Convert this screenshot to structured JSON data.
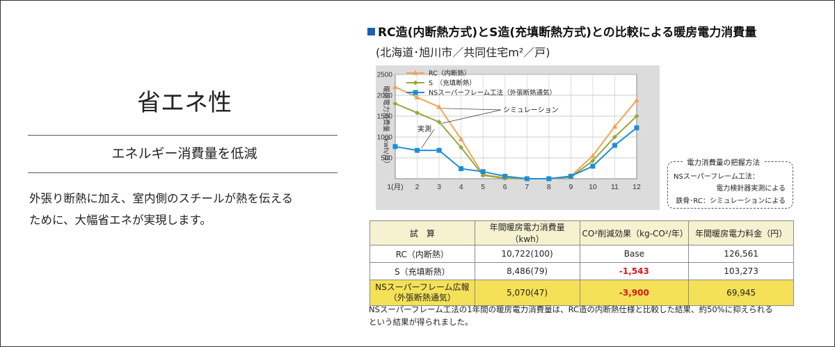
{
  "left": {
    "title": "省エネ性",
    "subtitle": "エネルギー消費量を低減",
    "body_line1": "外張り断熱に加え、室内側のスチールが熱を伝える",
    "body_line2": "ために、大幅省エネが実現します。"
  },
  "heading": "RC造(内断熱方式)とS造(充填断熱方式)との比較による暖房電力消費量",
  "subheading": "(北海道･旭川市／共同住宅m²／戸)",
  "chart_data": {
    "type": "line",
    "ylabel": "暖房電力消費量（kwh/月）",
    "ylim": [
      0,
      2500
    ],
    "yticks": [
      500,
      1000,
      1500,
      2000,
      2500
    ],
    "x": [
      1,
      2,
      3,
      4,
      5,
      6,
      7,
      8,
      9,
      10,
      11,
      12
    ],
    "xtick_labels": [
      "1(月)",
      "2",
      "3",
      "4",
      "5",
      "6",
      "7",
      "8",
      "9",
      "10",
      "11",
      "12"
    ],
    "grid": true,
    "legend_position": "top-left",
    "series": [
      {
        "name": "RC（内断熱）",
        "color": "#f0a35a",
        "marker": "triangle",
        "values": [
          2200,
          1950,
          1720,
          950,
          100,
          20,
          0,
          0,
          60,
          550,
          1250,
          1880
        ]
      },
      {
        "name": "S　（充填断熱）",
        "color": "#96a83c",
        "marker": "diamond",
        "values": [
          1800,
          1580,
          1360,
          750,
          80,
          10,
          0,
          0,
          40,
          430,
          1000,
          1500
        ]
      },
      {
        "name": "NSスーパーフレーム工法（外張断熱通気）",
        "color": "#1a8fd6",
        "marker": "square",
        "values": [
          770,
          680,
          680,
          240,
          170,
          60,
          0,
          0,
          60,
          300,
          800,
          1220
        ]
      }
    ],
    "annotations": [
      {
        "text": "シミュレーション",
        "target_month": 3
      },
      {
        "text": "実測",
        "target_month": 2
      }
    ]
  },
  "note": {
    "title": "電力消費量の把握方法",
    "line1": "NSスーパーフレーム工法：",
    "line2": "電力検針器実測による",
    "line3": "鉄骨･RC：シミュレーションによる"
  },
  "table": {
    "headers": [
      "試　算",
      "年間暖房電力消費量（kwh）",
      "CO²削減効果（kg-CO²/年）",
      "年間暖房電力料金（円）"
    ],
    "rows": [
      {
        "label": "RC（内断熱）",
        "label2": "",
        "consumption": "10,722(100)",
        "co2": "Base",
        "cost": "126,561"
      },
      {
        "label": "S（充填断熱）",
        "label2": "",
        "consumption": "8,486(79)",
        "co2": "-1,543",
        "cost": "103,273"
      },
      {
        "label": "NSスーパーフレーム広報",
        "label2": "（外張断熱通気）",
        "consumption": "5,070(47)",
        "co2": "-3,900",
        "cost": "69,945"
      }
    ]
  },
  "footnote": {
    "line1": "NSスーパーフレーム工法の1年間の暖房電力消費量は、RC造の内断熱仕様と比較した結果、約50%に抑えられる",
    "line2": "という結果が得られました。"
  }
}
